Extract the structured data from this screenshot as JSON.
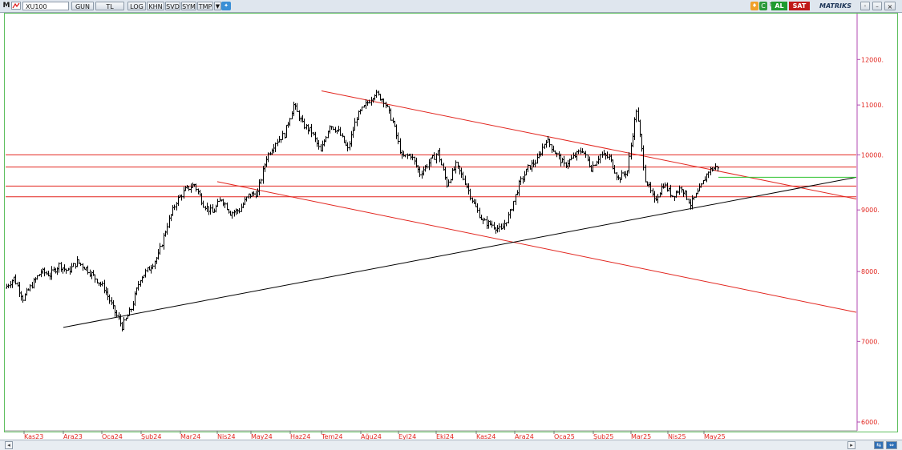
{
  "toolbar": {
    "logo": "M",
    "symbol": "XU100",
    "buttons": [
      "GUN",
      "TL",
      "LOG",
      "KHN",
      "SVD",
      "SYM",
      "TMP"
    ],
    "al_label": "AL",
    "sat_label": "SAT",
    "brand": "MATRIKS"
  },
  "colors": {
    "price": "#000000",
    "red_lines": "#e2261f",
    "support": "#000000",
    "green_line": "#2ec22e",
    "axis_text": "#e2261f"
  },
  "chart_data": {
    "type": "line",
    "style": "ohlc-bars",
    "y_scale": "log",
    "ylim": [
      5900,
      13100
    ],
    "y_ticks": [
      {
        "value": 12000,
        "label": "12000."
      },
      {
        "value": 11000,
        "label": "11000."
      },
      {
        "value": 10000,
        "label": "10000."
      },
      {
        "value": 9000,
        "label": "9000."
      },
      {
        "value": 8000,
        "label": "8000."
      },
      {
        "value": 7000,
        "label": "7000."
      },
      {
        "value": 6000,
        "label": "6000."
      }
    ],
    "x_ticks": [
      "Kas23",
      "Ara23",
      "Oca24",
      "Şub24",
      "Mar24",
      "Nis24",
      "May24",
      "Haz24",
      "Tem24",
      "Ağu24",
      "Eyl24",
      "Eki24",
      "Kas24",
      "Ara24",
      "Oca25",
      "Şub25",
      "Mar25",
      "Nis25",
      "May25"
    ],
    "series": [
      {
        "values": [
          7750,
          7900,
          7600,
          7800,
          8000,
          7950,
          8100,
          8000,
          8150,
          8050,
          7900,
          7750,
          7450,
          7200,
          7450,
          7900,
          8050,
          8250,
          8750,
          9150,
          9350,
          9450,
          9100,
          8950,
          9200,
          8950,
          9000,
          9250,
          9300,
          9950,
          10250,
          10400,
          11000,
          10600,
          10450,
          10050,
          10600,
          10450,
          10100,
          10750,
          11000,
          11250,
          11100,
          10650,
          9950,
          10000,
          9650,
          9850,
          10050,
          9450,
          9800,
          9500,
          9100,
          8800,
          8750,
          8650,
          8950,
          9450,
          9750,
          9900,
          10300,
          10050,
          9800,
          9950,
          10100,
          9750,
          10000,
          9950,
          9550,
          9700,
          10900,
          9550,
          9150,
          9450,
          9250,
          9400,
          9100,
          9350,
          9700,
          9780
        ]
      }
    ],
    "overlay_lines": [
      {
        "kind": "horizontal",
        "color": "red",
        "value": 10000
      },
      {
        "kind": "horizontal",
        "color": "red",
        "value": 9770
      },
      {
        "kind": "horizontal",
        "color": "red",
        "value": 9420
      },
      {
        "kind": "horizontal",
        "color": "red",
        "value": 9230
      },
      {
        "kind": "trend",
        "color": "red",
        "from": [
          "Tem24",
          11300
        ],
        "to": [
          "end",
          9190
        ]
      },
      {
        "kind": "trend",
        "color": "red",
        "from": [
          "Nis24",
          9500
        ],
        "to": [
          "end",
          7400
        ]
      },
      {
        "kind": "trend",
        "color": "black",
        "from": [
          "Ara23",
          7190
        ],
        "to": [
          "end",
          9580
        ]
      },
      {
        "kind": "segment",
        "color": "green",
        "from": [
          "May25",
          9580
        ],
        "to": [
          "end",
          9580
        ]
      }
    ]
  }
}
